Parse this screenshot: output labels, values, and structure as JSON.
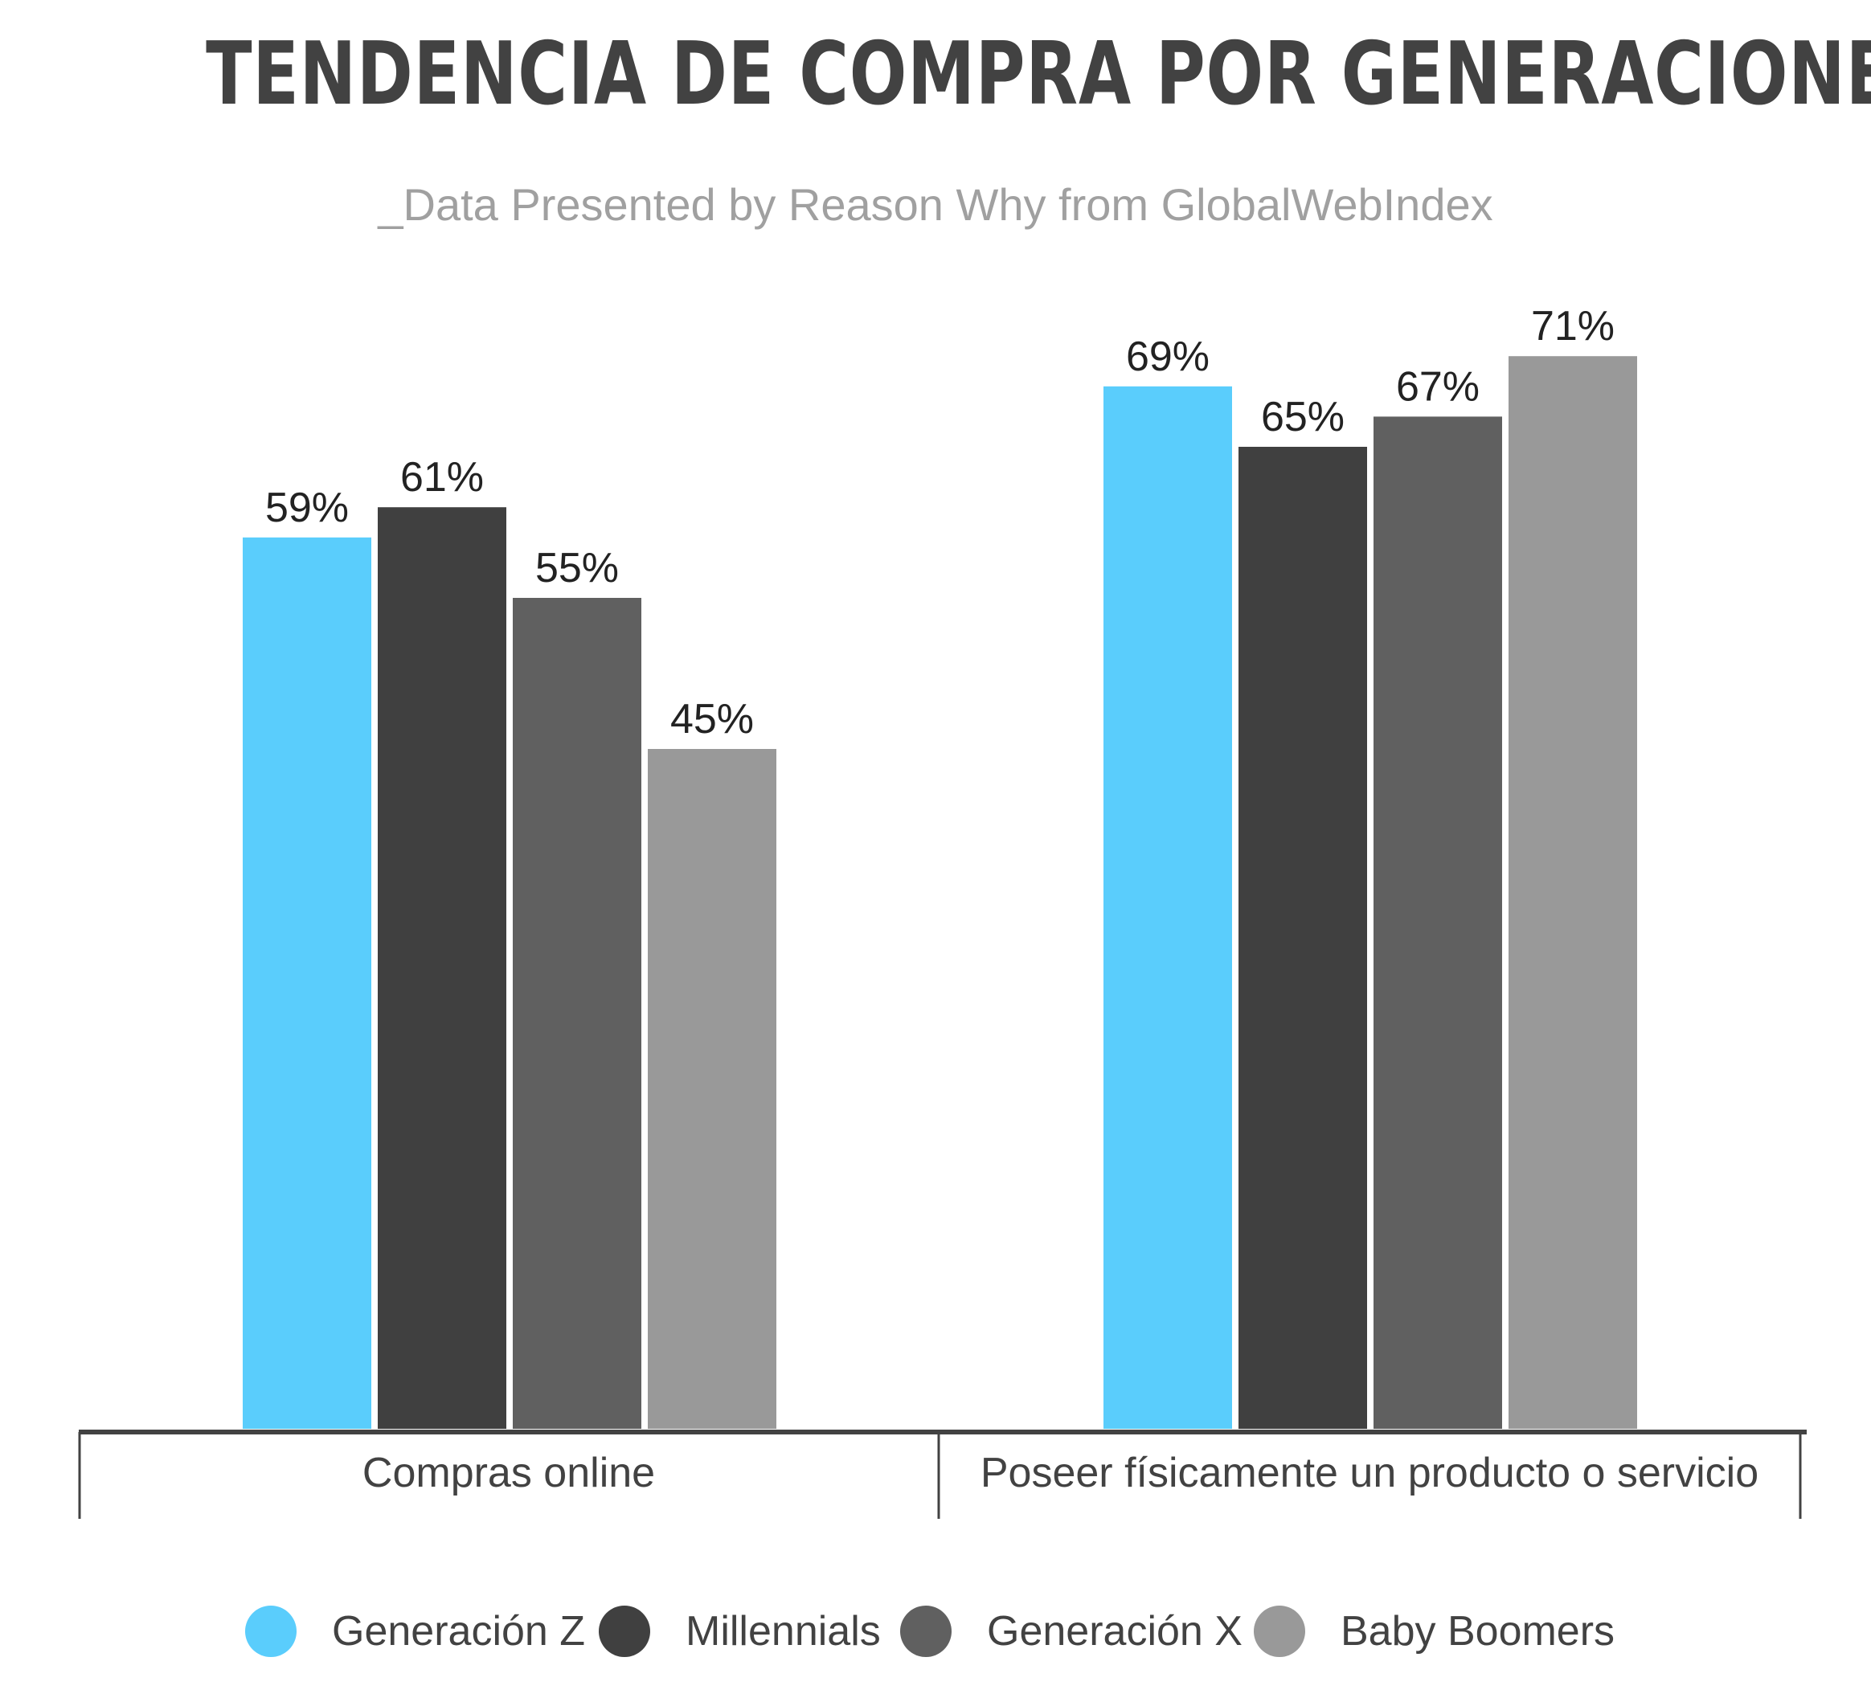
{
  "title": "TENDENCIA DE COMPRA POR GENERACIONES",
  "subtitle": "_Data Presented by Reason Why from GlobalWebIndex",
  "colors": {
    "generacion_z": "#5ACDFC",
    "millennials": "#404040",
    "generacion_x": "#606060",
    "baby_boomers": "#999999",
    "axis": "#424242",
    "text": "#424242",
    "subtitle": "#a0a0a0"
  },
  "chart_data": {
    "type": "bar",
    "title": "TENDENCIA DE COMPRA POR GENERACIONES",
    "subtitle": "_Data Presented by Reason Why from GlobalWebIndex",
    "categories": [
      "Compras online",
      "Poseer físicamente un producto o servicio"
    ],
    "series": [
      {
        "name": "Generación Z",
        "values": [
          59,
          69
        ],
        "labels": [
          "59%",
          "69%"
        ],
        "color": "#5ACDFC"
      },
      {
        "name": "Millennials",
        "values": [
          61,
          65
        ],
        "labels": [
          "61%",
          "65%"
        ],
        "color": "#404040"
      },
      {
        "name": "Generación X",
        "values": [
          55,
          67
        ],
        "labels": [
          "55%",
          "67%"
        ],
        "color": "#606060"
      },
      {
        "name": "Baby Boomers",
        "values": [
          45,
          71
        ],
        "labels": [
          "45%",
          "71%"
        ],
        "color": "#999999"
      }
    ],
    "unit": "%",
    "ylim": [
      0,
      100
    ],
    "grid": false,
    "legend": "bottom-center",
    "xlabel": "",
    "ylabel": ""
  },
  "legend": {
    "items": [
      {
        "label": "Generación Z",
        "color": "#5ACDFC"
      },
      {
        "label": "Millennials",
        "color": "#404040"
      },
      {
        "label": "Generación X",
        "color": "#606060"
      },
      {
        "label": "Baby Boomers",
        "color": "#999999"
      }
    ]
  }
}
